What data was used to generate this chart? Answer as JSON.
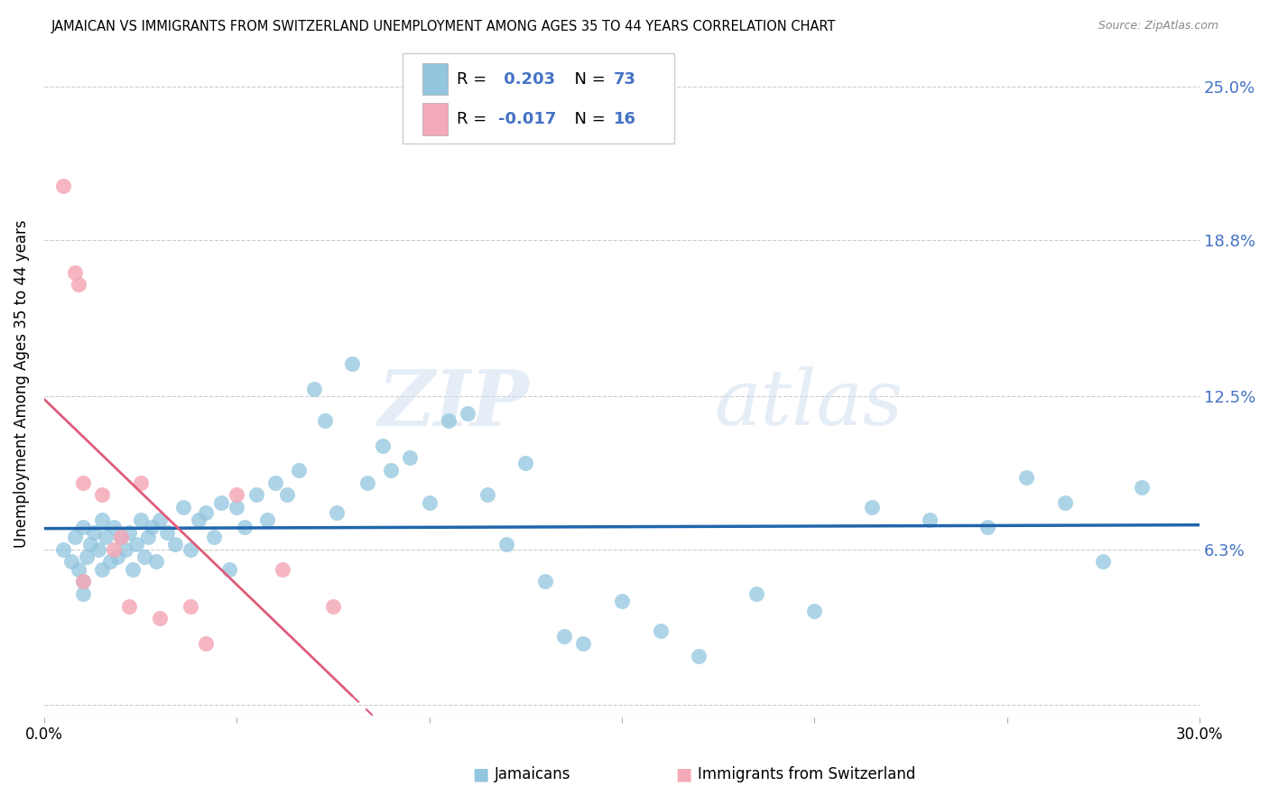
{
  "title": "JAMAICAN VS IMMIGRANTS FROM SWITZERLAND UNEMPLOYMENT AMONG AGES 35 TO 44 YEARS CORRELATION CHART",
  "source": "Source: ZipAtlas.com",
  "ylabel": "Unemployment Among Ages 35 to 44 years",
  "xlim": [
    0.0,
    0.3
  ],
  "ylim": [
    -0.005,
    0.265
  ],
  "yticks": [
    0.0,
    0.063,
    0.125,
    0.188,
    0.25
  ],
  "ytick_labels": [
    "",
    "6.3%",
    "12.5%",
    "18.8%",
    "25.0%"
  ],
  "xticks": [
    0.0,
    0.05,
    0.1,
    0.15,
    0.2,
    0.25,
    0.3
  ],
  "xtick_labels": [
    "0.0%",
    "",
    "",
    "",
    "",
    "",
    "30.0%"
  ],
  "blue_color": "#92c5de",
  "pink_color": "#f4a9b8",
  "blue_line_color": "#2166ac",
  "pink_line_color": "#e05c7a",
  "grid_color": "#cccccc",
  "r_blue": "0.203",
  "n_blue": "73",
  "r_pink": "-0.017",
  "n_pink": "16",
  "legend1_label": "Jamaicans",
  "legend2_label": "Immigrants from Switzerland",
  "watermark_zip": "ZIP",
  "watermark_atlas": "atlas",
  "blue_x": [
    0.005,
    0.007,
    0.008,
    0.009,
    0.01,
    0.01,
    0.01,
    0.011,
    0.012,
    0.013,
    0.014,
    0.015,
    0.015,
    0.016,
    0.017,
    0.018,
    0.019,
    0.02,
    0.021,
    0.022,
    0.023,
    0.024,
    0.025,
    0.026,
    0.027,
    0.028,
    0.029,
    0.03,
    0.032,
    0.034,
    0.036,
    0.038,
    0.04,
    0.042,
    0.044,
    0.046,
    0.048,
    0.05,
    0.052,
    0.055,
    0.058,
    0.06,
    0.063,
    0.066,
    0.07,
    0.073,
    0.076,
    0.08,
    0.084,
    0.088,
    0.09,
    0.095,
    0.1,
    0.105,
    0.11,
    0.115,
    0.12,
    0.125,
    0.13,
    0.135,
    0.14,
    0.15,
    0.16,
    0.17,
    0.185,
    0.2,
    0.215,
    0.23,
    0.245,
    0.255,
    0.265,
    0.275,
    0.285
  ],
  "blue_y": [
    0.063,
    0.058,
    0.068,
    0.055,
    0.072,
    0.05,
    0.045,
    0.06,
    0.065,
    0.07,
    0.063,
    0.075,
    0.055,
    0.068,
    0.058,
    0.072,
    0.06,
    0.068,
    0.063,
    0.07,
    0.055,
    0.065,
    0.075,
    0.06,
    0.068,
    0.072,
    0.058,
    0.075,
    0.07,
    0.065,
    0.08,
    0.063,
    0.075,
    0.078,
    0.068,
    0.082,
    0.055,
    0.08,
    0.072,
    0.085,
    0.075,
    0.09,
    0.085,
    0.095,
    0.128,
    0.115,
    0.078,
    0.138,
    0.09,
    0.105,
    0.095,
    0.1,
    0.082,
    0.115,
    0.118,
    0.085,
    0.065,
    0.098,
    0.05,
    0.028,
    0.025,
    0.042,
    0.03,
    0.02,
    0.045,
    0.038,
    0.08,
    0.075,
    0.072,
    0.092,
    0.082,
    0.058,
    0.088
  ],
  "pink_x": [
    0.005,
    0.008,
    0.009,
    0.01,
    0.01,
    0.015,
    0.018,
    0.02,
    0.022,
    0.025,
    0.03,
    0.038,
    0.042,
    0.05,
    0.062,
    0.075
  ],
  "pink_y": [
    0.21,
    0.175,
    0.17,
    0.09,
    0.05,
    0.085,
    0.063,
    0.068,
    0.04,
    0.09,
    0.035,
    0.04,
    0.025,
    0.085,
    0.055,
    0.04
  ]
}
